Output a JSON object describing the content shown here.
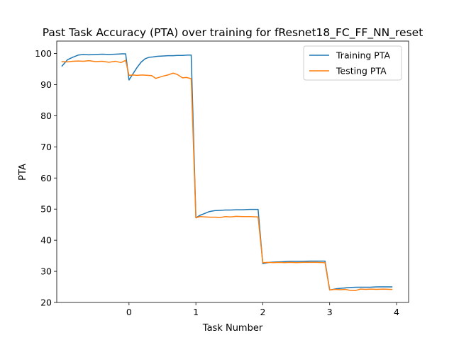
{
  "chart_data": {
    "type": "line",
    "title": "Past Task Accuracy (PTA) over training for fResnet18_FC_FF_NN_reset",
    "xlabel": "Task Number",
    "ylabel": "PTA",
    "xlim": [
      -1.08,
      4.18
    ],
    "ylim": [
      20,
      104
    ],
    "xticks": [
      0,
      1,
      2,
      3,
      4
    ],
    "yticks": [
      20,
      30,
      40,
      50,
      60,
      70,
      80,
      90,
      100
    ],
    "grid": false,
    "legend_position": "top-right",
    "series": [
      {
        "name": "Training PTA",
        "color": "#1f77b4",
        "x": [
          -1.0,
          -0.92,
          -0.84,
          -0.76,
          -0.68,
          -0.6,
          -0.5,
          -0.4,
          -0.3,
          -0.2,
          -0.1,
          -0.05,
          0.0,
          0.06,
          0.12,
          0.18,
          0.24,
          0.3,
          0.36,
          0.42,
          0.5,
          0.58,
          0.66,
          0.72,
          0.8,
          0.88,
          0.93,
          1.0,
          1.06,
          1.12,
          1.2,
          1.28,
          1.36,
          1.44,
          1.52,
          1.6,
          1.7,
          1.8,
          1.93,
          2.0,
          2.1,
          2.2,
          2.3,
          2.4,
          2.5,
          2.6,
          2.7,
          2.8,
          2.93,
          3.0,
          3.1,
          3.2,
          3.3,
          3.4,
          3.5,
          3.6,
          3.7,
          3.8,
          3.93
        ],
        "y": [
          96.0,
          98.0,
          98.8,
          99.5,
          99.7,
          99.6,
          99.7,
          99.8,
          99.7,
          99.8,
          99.9,
          99.9,
          91.5,
          93.5,
          95.5,
          97.2,
          98.3,
          98.8,
          98.9,
          99.1,
          99.2,
          99.3,
          99.3,
          99.4,
          99.4,
          99.5,
          99.5,
          47.2,
          48.0,
          48.5,
          49.2,
          49.5,
          49.6,
          49.7,
          49.7,
          49.8,
          49.8,
          49.9,
          49.9,
          32.5,
          32.9,
          33.0,
          33.1,
          33.2,
          33.2,
          33.2,
          33.3,
          33.3,
          33.3,
          24.0,
          24.4,
          24.6,
          24.8,
          24.9,
          24.9,
          24.9,
          25.0,
          25.0,
          25.0
        ]
      },
      {
        "name": "Testing PTA",
        "color": "#ff7f0e",
        "x": [
          -1.0,
          -0.92,
          -0.84,
          -0.76,
          -0.68,
          -0.6,
          -0.5,
          -0.4,
          -0.3,
          -0.2,
          -0.12,
          -0.05,
          0.0,
          0.06,
          0.12,
          0.2,
          0.28,
          0.34,
          0.4,
          0.46,
          0.52,
          0.58,
          0.66,
          0.72,
          0.8,
          0.86,
          0.93,
          1.0,
          1.06,
          1.14,
          1.22,
          1.3,
          1.36,
          1.44,
          1.52,
          1.6,
          1.7,
          1.8,
          1.93,
          2.0,
          2.08,
          2.16,
          2.24,
          2.32,
          2.4,
          2.5,
          2.6,
          2.7,
          2.8,
          2.93,
          3.0,
          3.08,
          3.16,
          3.24,
          3.3,
          3.38,
          3.46,
          3.54,
          3.62,
          3.7,
          3.8,
          3.93
        ],
        "y": [
          97.4,
          97.3,
          97.5,
          97.6,
          97.5,
          97.7,
          97.4,
          97.5,
          97.2,
          97.5,
          97.1,
          97.8,
          93.0,
          93.1,
          93.0,
          93.1,
          93.0,
          92.9,
          92.0,
          92.4,
          92.8,
          93.1,
          93.7,
          93.3,
          92.2,
          92.3,
          91.9,
          47.2,
          47.6,
          47.5,
          47.4,
          47.4,
          47.3,
          47.6,
          47.5,
          47.7,
          47.6,
          47.6,
          47.5,
          32.8,
          32.9,
          32.8,
          32.9,
          32.8,
          32.9,
          32.8,
          32.9,
          32.9,
          32.9,
          32.8,
          24.0,
          24.2,
          24.1,
          24.2,
          23.9,
          23.8,
          24.3,
          24.2,
          24.3,
          24.2,
          24.3,
          24.2
        ]
      }
    ]
  }
}
